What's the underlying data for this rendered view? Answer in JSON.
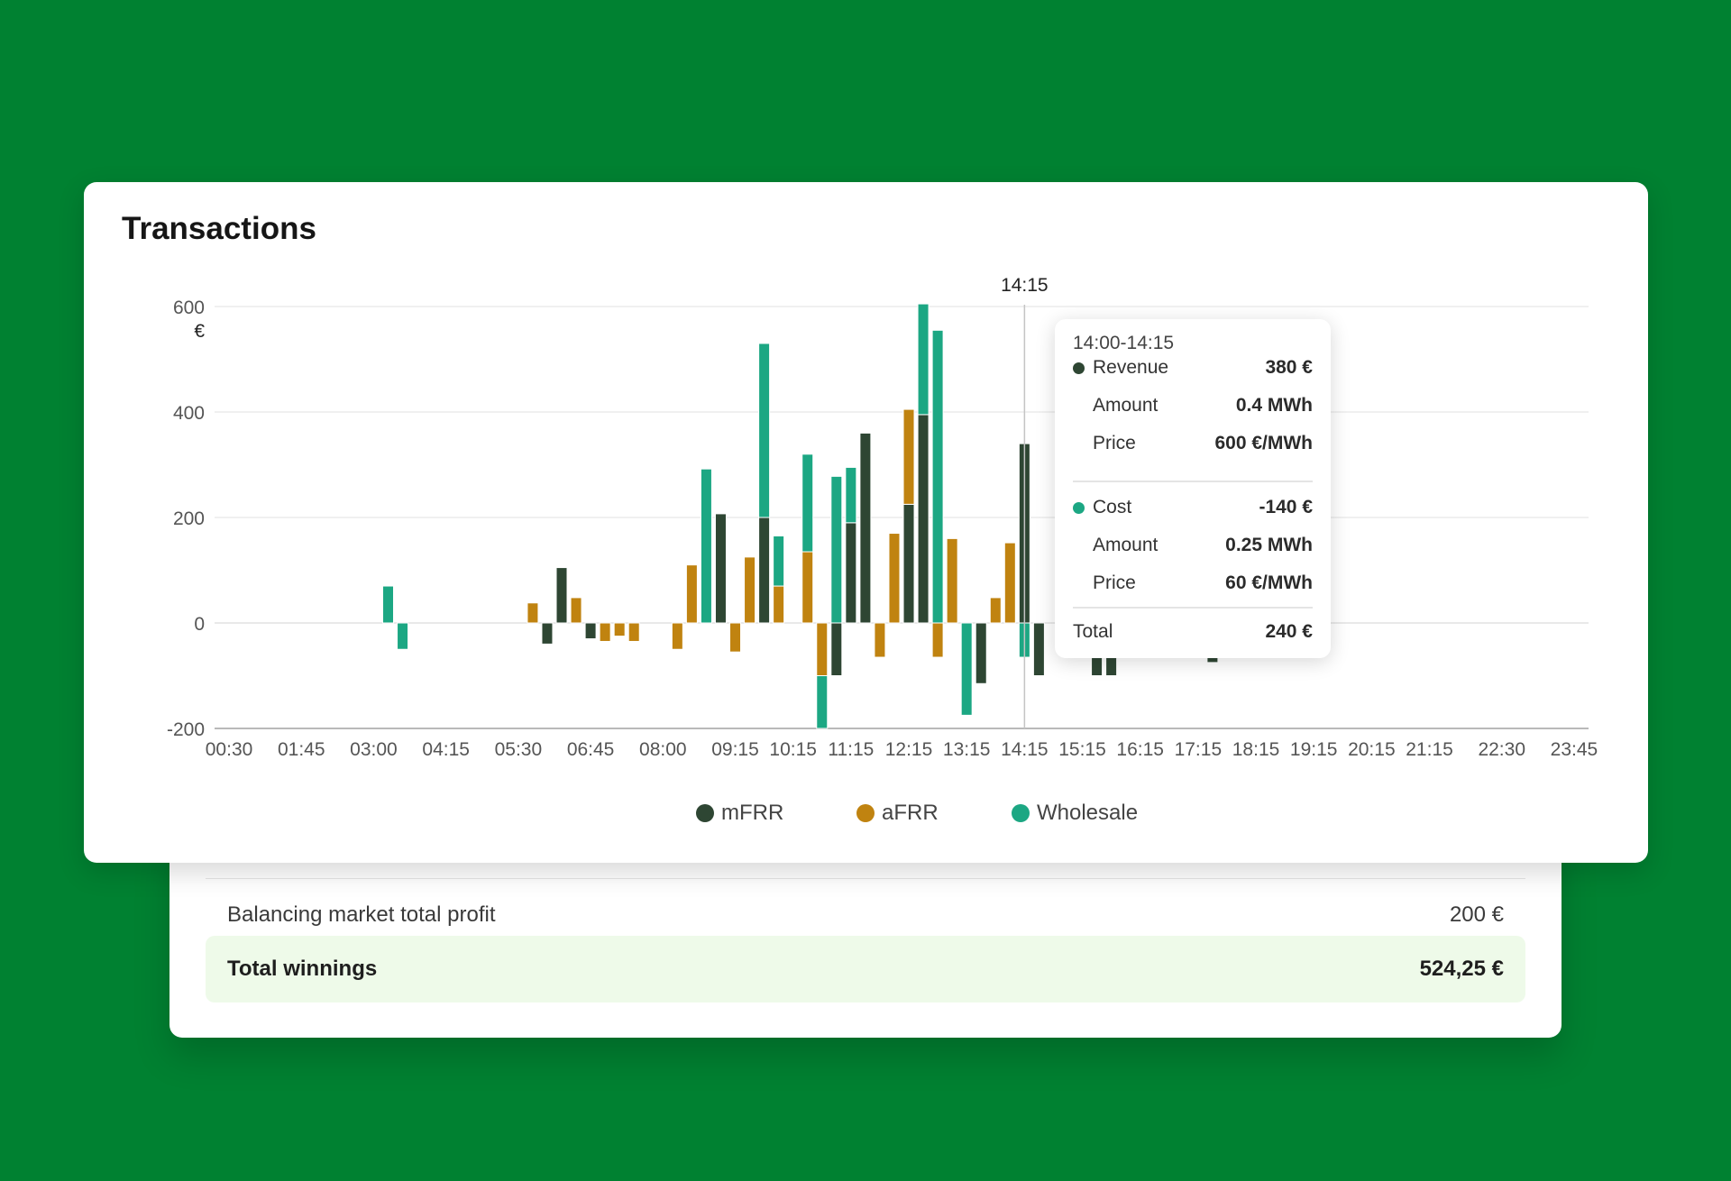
{
  "summary": {
    "profit_label": "Balancing market total profit",
    "profit_value": "200 €",
    "total_label": "Total winnings",
    "total_value": "524,25 €"
  },
  "colors": {
    "mfrr": "#2e4633",
    "afrr": "#c08310",
    "wholesale": "#1ca783"
  },
  "chart_data": {
    "type": "bar",
    "stacked": true,
    "title": "Transactions",
    "ylabel": "€",
    "ylim": [
      -200,
      600
    ],
    "yticks": [
      600,
      400,
      200,
      0,
      -200
    ],
    "grid": true,
    "legend_position": "bottom",
    "hover_label": "14:15",
    "x_tick_labels": [
      "00:30",
      "01:45",
      "03:00",
      "04:15",
      "05:30",
      "06:45",
      "08:00",
      "09:15",
      "10:15",
      "11:15",
      "12:15",
      "13:15",
      "14:15",
      "15:15",
      "16:15",
      "17:15",
      "18:15",
      "19:15",
      "20:15",
      "21:15",
      "22:30",
      "23:45"
    ],
    "legend": [
      {
        "key": "mfrr",
        "label": "mFRR"
      },
      {
        "key": "afrr",
        "label": "aFRR"
      },
      {
        "key": "wholesale",
        "label": "Wholesale"
      }
    ],
    "x": [
      "03:15",
      "03:30",
      "05:45",
      "06:00",
      "06:15",
      "06:30",
      "06:45",
      "07:00",
      "07:15",
      "07:30",
      "07:45",
      "08:15",
      "08:30",
      "08:45",
      "09:00",
      "09:15",
      "09:30",
      "09:45",
      "10:00",
      "10:15",
      "10:30",
      "10:45",
      "11:00",
      "11:15",
      "11:30",
      "11:45",
      "12:00",
      "12:15",
      "12:30",
      "12:45",
      "13:00",
      "13:15",
      "13:30",
      "13:45",
      "14:00",
      "14:15",
      "14:30",
      "15:30",
      "15:45",
      "17:30",
      "18:00"
    ],
    "series": [
      {
        "name": "mFRR",
        "values": [
          0,
          0,
          0,
          -40,
          105,
          0,
          -30,
          0,
          0,
          0,
          0,
          0,
          0,
          0,
          207,
          0,
          0,
          200,
          0,
          0,
          0,
          0,
          -100,
          190,
          360,
          0,
          0,
          225,
          395,
          0,
          0,
          0,
          -115,
          0,
          0,
          340,
          -100,
          -100,
          -100,
          -75,
          -60
        ]
      },
      {
        "name": "aFRR",
        "values": [
          0,
          0,
          38,
          0,
          0,
          48,
          0,
          -35,
          -25,
          -35,
          0,
          -50,
          110,
          0,
          0,
          -55,
          125,
          0,
          70,
          0,
          135,
          -100,
          0,
          0,
          0,
          -65,
          170,
          180,
          0,
          -65,
          160,
          0,
          0,
          48,
          152,
          0,
          0,
          0,
          0,
          0,
          0
        ]
      },
      {
        "name": "Wholesale",
        "values": [
          70,
          -50,
          0,
          0,
          0,
          0,
          0,
          0,
          0,
          0,
          0,
          0,
          0,
          292,
          0,
          0,
          0,
          330,
          95,
          0,
          185,
          -100,
          278,
          105,
          0,
          0,
          0,
          0,
          210,
          555,
          0,
          -175,
          0,
          0,
          0,
          -65,
          0,
          0,
          0,
          0,
          0
        ]
      }
    ]
  },
  "tooltip": {
    "range": "14:00-14:15",
    "revenue_label": "Revenue",
    "revenue_value": "380 €",
    "rev_amount_label": "Amount",
    "rev_amount_value": "0.4 MWh",
    "rev_price_label": "Price",
    "rev_price_value": "600 €/MWh",
    "cost_label": "Cost",
    "cost_value": "-140 €",
    "cost_amount_label": "Amount",
    "cost_amount_value": "0.25 MWh",
    "cost_price_label": "Price",
    "cost_price_value": "60 €/MWh",
    "total_label": "Total",
    "total_value": "240 €"
  }
}
